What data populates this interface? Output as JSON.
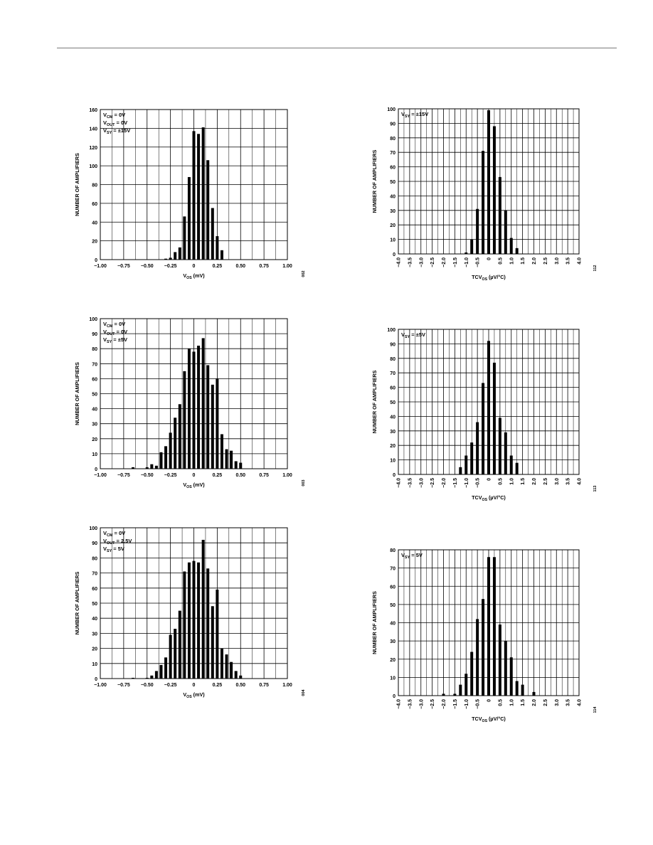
{
  "chart_data": [
    {
      "id": "c1",
      "type": "bar",
      "annotation_lines": [
        {
          "main": "V",
          "sub": "CM",
          "rest": " = 0V"
        },
        {
          "main": "V",
          "sub": "OUT",
          "rest": " = 0V"
        },
        {
          "main": "V",
          "sub": "SY",
          "rest": " = ±15V"
        }
      ],
      "ylabel": "NUMBER OF AMPLIFIERS",
      "xlabel": {
        "main": "V",
        "sub": "OS",
        "rest": " (mV)"
      },
      "figure_id": "002",
      "xlim": [
        -1.0,
        1.0
      ],
      "ylim": [
        0,
        160
      ],
      "x_ticks": [
        "−1.00",
        "−0.75",
        "−0.50",
        "−0.25",
        "0",
        "0.25",
        "0.50",
        "0.75",
        "1.00"
      ],
      "y_ticks": [
        "0",
        "20",
        "40",
        "60",
        "80",
        "100",
        "120",
        "140",
        "160"
      ],
      "bin_width": 0.05,
      "bins": [
        {
          "x": -0.3,
          "y": 1
        },
        {
          "x": -0.25,
          "y": 2
        },
        {
          "x": -0.2,
          "y": 8
        },
        {
          "x": -0.15,
          "y": 13
        },
        {
          "x": -0.1,
          "y": 46
        },
        {
          "x": -0.05,
          "y": 88
        },
        {
          "x": 0.0,
          "y": 137
        },
        {
          "x": 0.05,
          "y": 134
        },
        {
          "x": 0.1,
          "y": 141
        },
        {
          "x": 0.15,
          "y": 106
        },
        {
          "x": 0.2,
          "y": 55
        },
        {
          "x": 0.25,
          "y": 25
        },
        {
          "x": 0.3,
          "y": 10
        }
      ]
    },
    {
      "id": "c2",
      "type": "bar",
      "annotation_lines": [
        {
          "main": "V",
          "sub": "SY",
          "rest": " = ±15V"
        }
      ],
      "ylabel": "NUMBER OF AMPLIFIERS",
      "xlabel": {
        "main": "TCV",
        "sub": "OS",
        "rest": " (µV/°C)"
      },
      "figure_id": "112",
      "xlim": [
        -4.0,
        4.0
      ],
      "ylim": [
        0,
        100
      ],
      "x_ticks": [
        "−4.0",
        "−3.5",
        "−3.0",
        "−2.5",
        "−2.0",
        "−1.5",
        "−1.0",
        "−0.5",
        "0",
        "0.5",
        "1.0",
        "1.5",
        "2.0",
        "2.5",
        "3.0",
        "3.5",
        "4.0"
      ],
      "y_ticks": [
        "0",
        "10",
        "20",
        "30",
        "40",
        "50",
        "60",
        "70",
        "80",
        "90",
        "100"
      ],
      "bin_width": 0.25,
      "bins": [
        {
          "x": -1.0,
          "y": 1
        },
        {
          "x": -0.75,
          "y": 10
        },
        {
          "x": -0.5,
          "y": 31
        },
        {
          "x": -0.25,
          "y": 71
        },
        {
          "x": 0.0,
          "y": 99
        },
        {
          "x": 0.25,
          "y": 88
        },
        {
          "x": 0.5,
          "y": 53
        },
        {
          "x": 0.75,
          "y": 30
        },
        {
          "x": 1.0,
          "y": 11
        },
        {
          "x": 1.25,
          "y": 4
        }
      ]
    },
    {
      "id": "c3",
      "type": "bar",
      "annotation_lines": [
        {
          "main": "V",
          "sub": "CM",
          "rest": " = 0V"
        },
        {
          "main": "V",
          "sub": "OUT",
          "rest": " = 0V"
        },
        {
          "main": "V",
          "sub": "SY",
          "rest": " = ±5V"
        }
      ],
      "ylabel": "NUMBER OF AMPLIFIERS",
      "xlabel": {
        "main": "V",
        "sub": "OS",
        "rest": " (mV)"
      },
      "figure_id": "003",
      "xlim": [
        -1.0,
        1.0
      ],
      "ylim": [
        0,
        100
      ],
      "x_ticks": [
        "−1.00",
        "−0.75",
        "−0.50",
        "−0.25",
        "0",
        "0.25",
        "0.50",
        "0.75",
        "1.00"
      ],
      "y_ticks": [
        "0",
        "10",
        "20",
        "30",
        "40",
        "50",
        "60",
        "70",
        "80",
        "90",
        "100"
      ],
      "bin_width": 0.05,
      "bins": [
        {
          "x": -0.65,
          "y": 1
        },
        {
          "x": -0.5,
          "y": 1
        },
        {
          "x": -0.45,
          "y": 3
        },
        {
          "x": -0.4,
          "y": 2
        },
        {
          "x": -0.35,
          "y": 11
        },
        {
          "x": -0.3,
          "y": 15
        },
        {
          "x": -0.25,
          "y": 24
        },
        {
          "x": -0.2,
          "y": 34
        },
        {
          "x": -0.15,
          "y": 43
        },
        {
          "x": -0.1,
          "y": 65
        },
        {
          "x": -0.05,
          "y": 80
        },
        {
          "x": 0.0,
          "y": 78
        },
        {
          "x": 0.05,
          "y": 82
        },
        {
          "x": 0.1,
          "y": 87
        },
        {
          "x": 0.15,
          "y": 69
        },
        {
          "x": 0.2,
          "y": 56
        },
        {
          "x": 0.25,
          "y": 60
        },
        {
          "x": 0.3,
          "y": 23
        },
        {
          "x": 0.35,
          "y": 13
        },
        {
          "x": 0.4,
          "y": 12
        },
        {
          "x": 0.45,
          "y": 5
        },
        {
          "x": 0.5,
          "y": 4
        }
      ]
    },
    {
      "id": "c4",
      "type": "bar",
      "annotation_lines": [
        {
          "main": "V",
          "sub": "SY",
          "rest": " = ±5V"
        }
      ],
      "ylabel": "NUMBER OF AMPLIFIERS",
      "xlabel": {
        "main": "TCV",
        "sub": "OS",
        "rest": " (µV/°C)"
      },
      "figure_id": "113",
      "xlim": [
        -4.0,
        4.0
      ],
      "ylim": [
        0,
        100
      ],
      "x_ticks": [
        "−4.0",
        "−3.5",
        "−3.0",
        "−2.5",
        "−2.0",
        "−1.5",
        "−1.0",
        "−0.5",
        "0",
        "0.5",
        "1.0",
        "1.5",
        "2.0",
        "2.5",
        "3.0",
        "3.5",
        "4.0"
      ],
      "y_ticks": [
        "0",
        "10",
        "20",
        "30",
        "40",
        "50",
        "60",
        "70",
        "80",
        "90",
        "100"
      ],
      "bin_width": 0.25,
      "bins": [
        {
          "x": -1.25,
          "y": 5
        },
        {
          "x": -1.0,
          "y": 13
        },
        {
          "x": -0.75,
          "y": 22
        },
        {
          "x": -0.5,
          "y": 36
        },
        {
          "x": -0.25,
          "y": 63
        },
        {
          "x": 0.0,
          "y": 92
        },
        {
          "x": 0.25,
          "y": 77
        },
        {
          "x": 0.5,
          "y": 39
        },
        {
          "x": 0.75,
          "y": 29
        },
        {
          "x": 1.0,
          "y": 13
        },
        {
          "x": 1.25,
          "y": 8
        }
      ]
    },
    {
      "id": "c5",
      "type": "bar",
      "annotation_lines": [
        {
          "main": "V",
          "sub": "CM",
          "rest": " = 0V"
        },
        {
          "main": "V",
          "sub": "OUT",
          "rest": " = 2.5V"
        },
        {
          "main": "V",
          "sub": "SY",
          "rest": " = 5V"
        }
      ],
      "ylabel": "NUMBER OF AMPLIFIERS",
      "xlabel": {
        "main": "V",
        "sub": "OS",
        "rest": " (mV)"
      },
      "figure_id": "004",
      "xlim": [
        -1.0,
        1.0
      ],
      "ylim": [
        0,
        100
      ],
      "x_ticks": [
        "−1.00",
        "−0.75",
        "−0.50",
        "−0.25",
        "0",
        "0.25",
        "0.50",
        "0.75",
        "1.00"
      ],
      "y_ticks": [
        "0",
        "10",
        "20",
        "30",
        "40",
        "50",
        "60",
        "70",
        "80",
        "90",
        "100"
      ],
      "bin_width": 0.05,
      "bins": [
        {
          "x": -0.65,
          "y": 0.5
        },
        {
          "x": -0.5,
          "y": 0.5
        },
        {
          "x": -0.45,
          "y": 2
        },
        {
          "x": -0.4,
          "y": 5
        },
        {
          "x": -0.35,
          "y": 9
        },
        {
          "x": -0.3,
          "y": 14
        },
        {
          "x": -0.25,
          "y": 29
        },
        {
          "x": -0.2,
          "y": 33
        },
        {
          "x": -0.15,
          "y": 45
        },
        {
          "x": -0.1,
          "y": 71
        },
        {
          "x": -0.05,
          "y": 77
        },
        {
          "x": 0.0,
          "y": 78
        },
        {
          "x": 0.05,
          "y": 77
        },
        {
          "x": 0.1,
          "y": 92
        },
        {
          "x": 0.15,
          "y": 73
        },
        {
          "x": 0.2,
          "y": 48
        },
        {
          "x": 0.25,
          "y": 59
        },
        {
          "x": 0.3,
          "y": 20
        },
        {
          "x": 0.35,
          "y": 16
        },
        {
          "x": 0.4,
          "y": 11
        },
        {
          "x": 0.45,
          "y": 5
        },
        {
          "x": 0.5,
          "y": 2
        }
      ]
    },
    {
      "id": "c6",
      "type": "bar",
      "annotation_lines": [
        {
          "main": "V",
          "sub": "SY",
          "rest": " = 5V"
        }
      ],
      "ylabel": "NUMBER OF AMPLIFIERS",
      "xlabel": {
        "main": "TCV",
        "sub": "OS",
        "rest": " (µV/°C)"
      },
      "figure_id": "114",
      "xlim": [
        -4.0,
        4.0
      ],
      "ylim": [
        0,
        80
      ],
      "x_ticks": [
        "−4.0",
        "−3.5",
        "−3.0",
        "−2.5",
        "−2.0",
        "−1.5",
        "−1.0",
        "−0.5",
        "0",
        "0.5",
        "1.0",
        "1.5",
        "2.0",
        "2.5",
        "3.0",
        "3.5",
        "4.0"
      ],
      "y_ticks": [
        "0",
        "10",
        "20",
        "30",
        "40",
        "50",
        "60",
        "70",
        "80"
      ],
      "bin_width": 0.25,
      "bins": [
        {
          "x": -2.0,
          "y": 1
        },
        {
          "x": -1.5,
          "y": 1
        },
        {
          "x": -1.25,
          "y": 6
        },
        {
          "x": -1.0,
          "y": 12
        },
        {
          "x": -0.75,
          "y": 24
        },
        {
          "x": -0.5,
          "y": 42
        },
        {
          "x": -0.25,
          "y": 53
        },
        {
          "x": 0.0,
          "y": 76
        },
        {
          "x": 0.25,
          "y": 76
        },
        {
          "x": 0.5,
          "y": 39
        },
        {
          "x": 0.75,
          "y": 30
        },
        {
          "x": 1.0,
          "y": 21
        },
        {
          "x": 1.25,
          "y": 8
        },
        {
          "x": 1.5,
          "y": 6
        },
        {
          "x": 2.0,
          "y": 2
        }
      ]
    }
  ]
}
